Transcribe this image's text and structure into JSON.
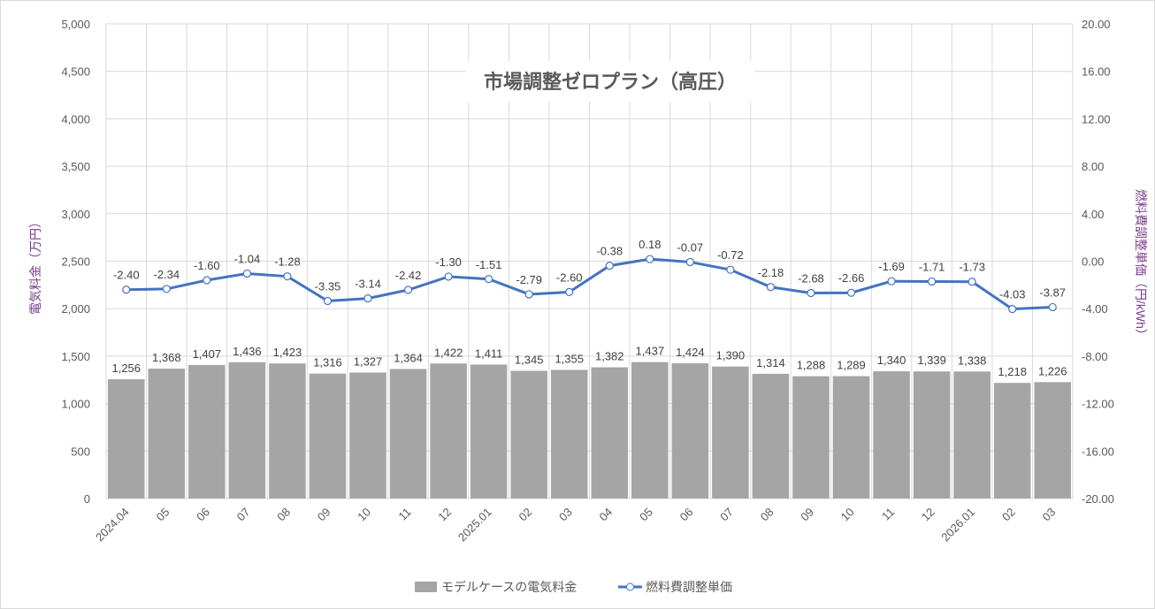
{
  "chart_data": {
    "type": "bar+line",
    "title": "市場調整ゼロプラン（高圧）",
    "categories": [
      "2024.04",
      "05",
      "06",
      "07",
      "08",
      "09",
      "10",
      "11",
      "12",
      "2025.01",
      "02",
      "03",
      "04",
      "05",
      "06",
      "07",
      "08",
      "09",
      "10",
      "11",
      "12",
      "2026.01",
      "02",
      "03"
    ],
    "series": [
      {
        "name": "モデルケースの電気料金",
        "type": "bar",
        "axis": "left",
        "color": "#a5a5a5",
        "values": [
          1256,
          1368,
          1407,
          1436,
          1423,
          1316,
          1327,
          1364,
          1422,
          1411,
          1345,
          1355,
          1382,
          1437,
          1424,
          1390,
          1314,
          1288,
          1289,
          1340,
          1339,
          1338,
          1218,
          1226
        ]
      },
      {
        "name": "燃料費調整単価",
        "type": "line",
        "axis": "right",
        "color": "#4472c4",
        "values": [
          -2.4,
          -2.34,
          -1.6,
          -1.04,
          -1.28,
          -3.35,
          -3.14,
          -2.42,
          -1.3,
          -1.51,
          -2.79,
          -2.6,
          -0.38,
          0.18,
          -0.07,
          -0.72,
          -2.18,
          -2.68,
          -2.66,
          -1.69,
          -1.71,
          -1.73,
          -4.03,
          -3.87
        ]
      }
    ],
    "ylabel": "電気料金（万円）",
    "y2label": "燃料費調整単価（円/kWh）",
    "ylim": [
      0,
      5000
    ],
    "y2lim": [
      -20,
      20
    ],
    "yticks": [
      0,
      500,
      1000,
      1500,
      2000,
      2500,
      3000,
      3500,
      4000,
      4500,
      5000
    ],
    "y2ticks": [
      -20,
      -16,
      -12,
      -8,
      -4,
      0,
      4,
      8,
      12,
      16,
      20
    ],
    "grid": true,
    "legend": "bottom"
  }
}
